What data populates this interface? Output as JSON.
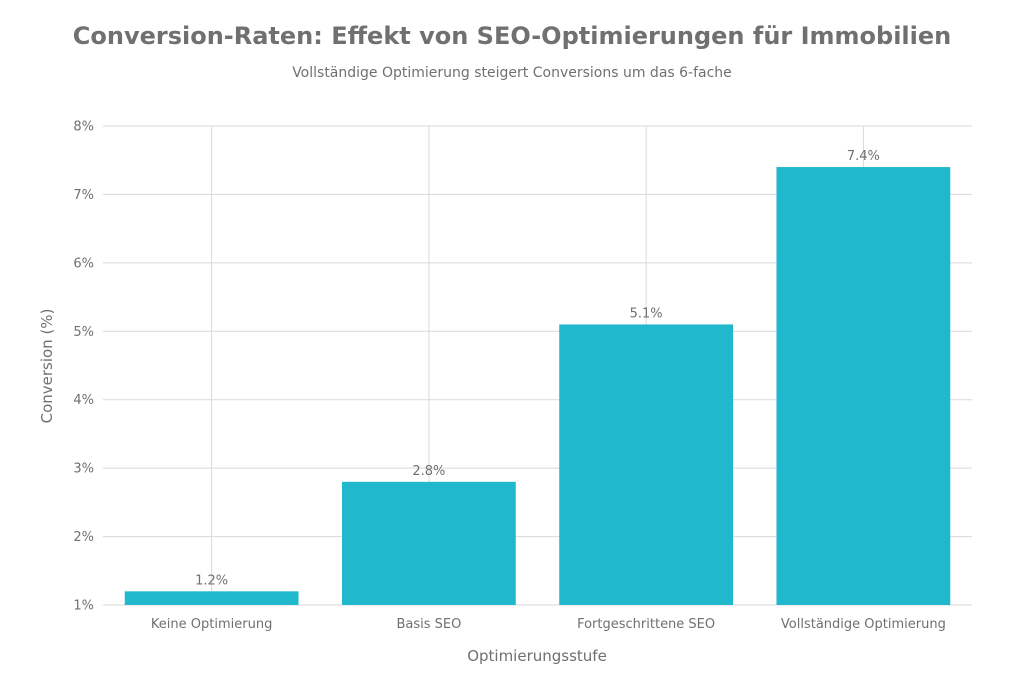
{
  "chart_data": {
    "type": "bar",
    "title": "Conversion-Raten: Effekt von SEO-Optimierungen für Immobilien",
    "subtitle": "Vollständige Optimierung steigert Conversions um das 6-fache",
    "xlabel": "Optimierungsstufe",
    "ylabel": "Conversion (%)",
    "categories": [
      "Keine Optimierung",
      "Basis SEO",
      "Fortgeschrittene SEO",
      "Vollständige Optimierung"
    ],
    "values": [
      1.2,
      2.8,
      5.1,
      7.4
    ],
    "data_labels": [
      "1.2%",
      "2.8%",
      "5.1%",
      "7.4%"
    ],
    "ylim": [
      1,
      8
    ],
    "yticks": [
      1,
      2,
      3,
      4,
      5,
      6,
      7,
      8
    ],
    "ytick_labels": [
      "1%",
      "2%",
      "3%",
      "4%",
      "5%",
      "6%",
      "7%",
      "8%"
    ],
    "grid": true,
    "bar_color": "#20b8cc"
  }
}
